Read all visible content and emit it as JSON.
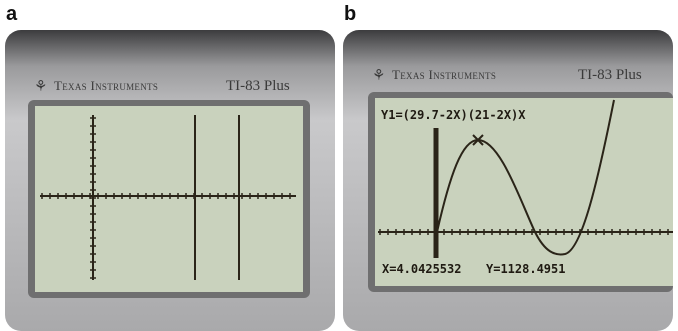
{
  "panels": [
    {
      "label": "a",
      "brand": "Texas Instruments",
      "model": "TI-83 Plus"
    },
    {
      "label": "b",
      "brand": "Texas Instruments",
      "model": "TI-83 Plus",
      "screen": {
        "equation": "Y1=(29.7-2X)(21-2X)X",
        "cursor_x": "X=4.0425532",
        "cursor_y": "Y=1128.4951"
      }
    }
  ]
}
